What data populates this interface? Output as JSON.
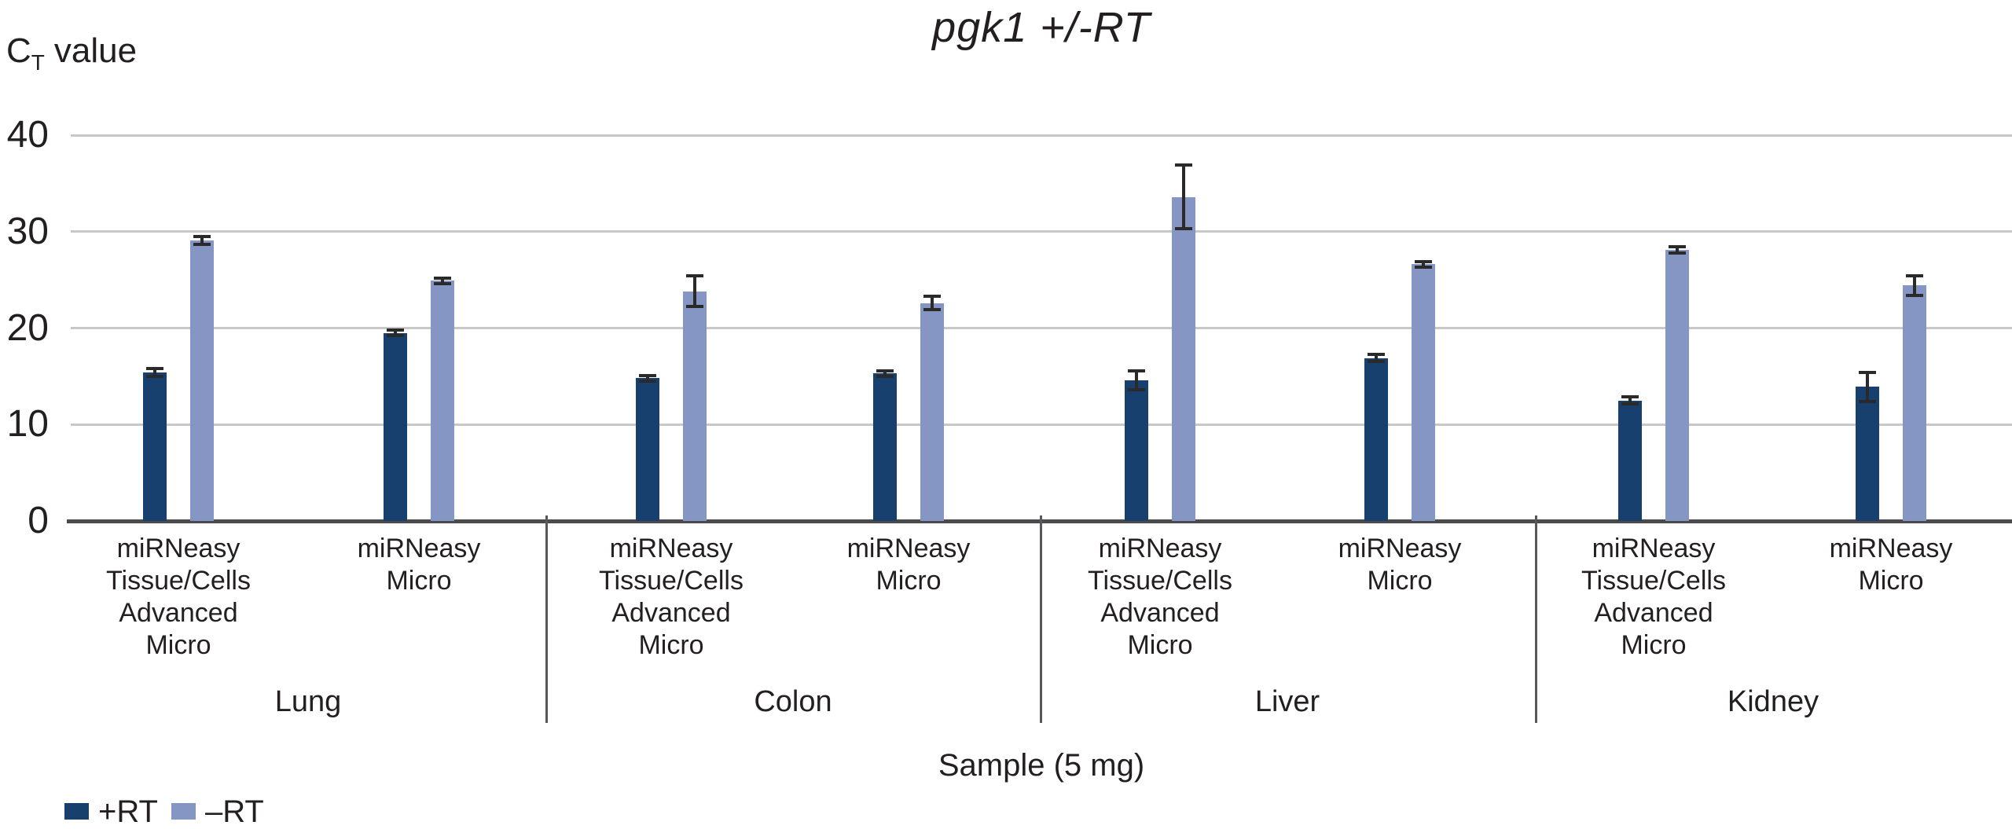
{
  "title": "pgk1 +/-RT",
  "y_axis": {
    "label_c": "C",
    "label_sub": "T",
    "label_rest": "value",
    "ticks": [
      40,
      30,
      20,
      10,
      0
    ]
  },
  "x_axis": {
    "title": "Sample (5 mg)"
  },
  "legend": [
    {
      "label": "+RT",
      "color": "#17406E"
    },
    {
      "label": "–RT",
      "color": "#8595C4"
    }
  ],
  "colors": {
    "bar_plus_rt": "#17406E",
    "bar_minus_rt": "#8595C4",
    "gridline": "#C8C8C8",
    "axis_line": "#4B4B4D",
    "divider": "#58585A",
    "text": "#231F20",
    "error_bar": "#2A2A2A"
  },
  "chart_data": {
    "type": "bar",
    "title": "pgk1 +/-RT",
    "ylabel": "CT value",
    "xlabel": "Sample (5 mg)",
    "ylim": [
      0,
      40
    ],
    "yticks": [
      0,
      10,
      20,
      30,
      40
    ],
    "grid": true,
    "legend_position": "bottom-left",
    "series": [
      {
        "name": "+RT",
        "color": "#17406E"
      },
      {
        "name": "–RT",
        "color": "#8595C4"
      }
    ],
    "groups": [
      {
        "label": "Lung",
        "bars": [
          {
            "label_lines": [
              "miRNeasy",
              "Tissue/Cells",
              "Advanced",
              "Micro"
            ],
            "values": [
              15.4,
              29.1
            ],
            "errors": [
              0.4,
              0.4
            ]
          },
          {
            "label_lines": [
              "miRNeasy",
              "Micro"
            ],
            "values": [
              19.5,
              24.9
            ],
            "errors": [
              0.3,
              0.3
            ]
          }
        ]
      },
      {
        "label": "Colon",
        "bars": [
          {
            "label_lines": [
              "miRNeasy",
              "Tissue/Cells",
              "Advanced",
              "Micro"
            ],
            "values": [
              14.8,
              23.8
            ],
            "errors": [
              0.3,
              1.6
            ]
          },
          {
            "label_lines": [
              "miRNeasy",
              "Micro"
            ],
            "values": [
              15.3,
              22.6
            ],
            "errors": [
              0.3,
              0.7
            ]
          }
        ]
      },
      {
        "label": "Liver",
        "bars": [
          {
            "label_lines": [
              "miRNeasy",
              "Tissue/Cells",
              "Advanced",
              "Micro"
            ],
            "values": [
              14.6,
              33.6
            ],
            "errors": [
              1.0,
              3.3
            ]
          },
          {
            "label_lines": [
              "miRNeasy",
              "Micro"
            ],
            "values": [
              16.9,
              26.6
            ],
            "errors": [
              0.4,
              0.3
            ]
          }
        ]
      },
      {
        "label": "Kidney",
        "bars": [
          {
            "label_lines": [
              "miRNeasy",
              "Tissue/Cells",
              "Advanced",
              "Micro"
            ],
            "values": [
              12.5,
              28.1
            ],
            "errors": [
              0.4,
              0.3
            ]
          },
          {
            "label_lines": [
              "miRNeasy",
              "Micro"
            ],
            "values": [
              13.9,
              24.4
            ],
            "errors": [
              1.5,
              1.0
            ]
          }
        ]
      }
    ]
  }
}
